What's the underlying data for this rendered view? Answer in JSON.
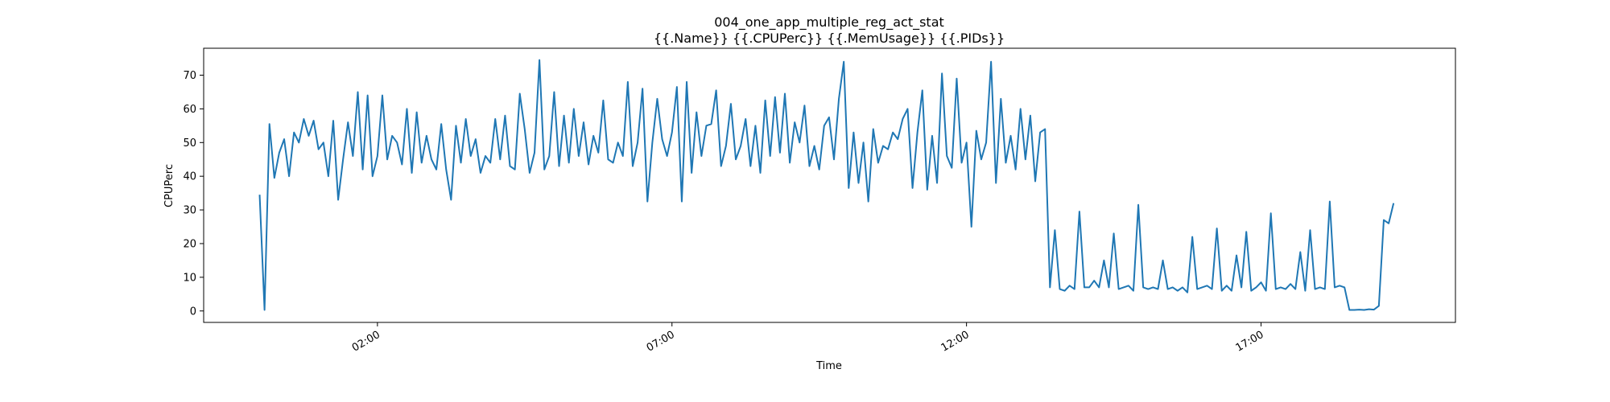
{
  "chart_data": {
    "type": "line",
    "title": "004_one_app_multiple_reg_act_stat",
    "subtitle": "{{.Name}} {{.CPUPerc}} {{.MemUsage}}  {{.PIDs}}",
    "x_label": "Time",
    "y_label": "CPUPerc",
    "x": [
      "00:00",
      "00:05",
      "00:10",
      "00:15",
      "00:20",
      "00:25",
      "00:30",
      "00:35",
      "00:40",
      "00:45",
      "00:50",
      "00:55",
      "01:00",
      "01:05",
      "01:10",
      "01:15",
      "01:20",
      "01:25",
      "01:30",
      "01:35",
      "01:40",
      "01:45",
      "01:50",
      "01:55",
      "02:00",
      "02:05",
      "02:10",
      "02:15",
      "02:20",
      "02:25",
      "02:30",
      "02:35",
      "02:40",
      "02:45",
      "02:50",
      "02:55",
      "03:00",
      "03:05",
      "03:10",
      "03:15",
      "03:20",
      "03:25",
      "03:30",
      "03:35",
      "03:40",
      "03:45",
      "03:50",
      "03:55",
      "04:00",
      "04:05",
      "04:10",
      "04:15",
      "04:20",
      "04:25",
      "04:30",
      "04:35",
      "04:40",
      "04:45",
      "04:50",
      "04:55",
      "05:00",
      "05:05",
      "05:10",
      "05:15",
      "05:20",
      "05:25",
      "05:30",
      "05:35",
      "05:40",
      "05:45",
      "05:50",
      "05:55",
      "06:00",
      "06:05",
      "06:10",
      "06:15",
      "06:20",
      "06:25",
      "06:30",
      "06:35",
      "06:40",
      "06:45",
      "06:50",
      "06:55",
      "07:00",
      "07:05",
      "07:10",
      "07:15",
      "07:20",
      "07:25",
      "07:30",
      "07:35",
      "07:40",
      "07:45",
      "07:50",
      "07:55",
      "08:00",
      "08:05",
      "08:10",
      "08:15",
      "08:20",
      "08:25",
      "08:30",
      "08:35",
      "08:40",
      "08:45",
      "08:50",
      "08:55",
      "09:00",
      "09:05",
      "09:10",
      "09:15",
      "09:20",
      "09:25",
      "09:30",
      "09:35",
      "09:40",
      "09:45",
      "09:50",
      "09:55",
      "10:00",
      "10:05",
      "10:10",
      "10:15",
      "10:20",
      "10:25",
      "10:30",
      "10:35",
      "10:40",
      "10:45",
      "10:50",
      "10:55",
      "11:00",
      "11:05",
      "11:10",
      "11:15",
      "11:20",
      "11:25",
      "11:30",
      "11:35",
      "11:40",
      "11:45",
      "11:50",
      "11:55",
      "12:00",
      "12:05",
      "12:10",
      "12:15",
      "12:20",
      "12:25",
      "12:30",
      "12:35",
      "12:40",
      "12:45",
      "12:50",
      "12:55",
      "13:00",
      "13:05",
      "13:10",
      "13:15",
      "13:20",
      "13:25",
      "13:30",
      "13:35",
      "13:40",
      "13:45",
      "13:50",
      "13:55",
      "14:00",
      "14:05",
      "14:10",
      "14:15",
      "14:20",
      "14:25",
      "14:30",
      "14:35",
      "14:40",
      "14:45",
      "14:50",
      "14:55",
      "15:00",
      "15:05",
      "15:10",
      "15:15",
      "15:20",
      "15:25",
      "15:30",
      "15:35",
      "15:40",
      "15:45",
      "15:50",
      "15:55",
      "16:00",
      "16:05",
      "16:10",
      "16:15",
      "16:20",
      "16:25",
      "16:30",
      "16:35",
      "16:40",
      "16:45",
      "16:50",
      "16:55",
      "17:00",
      "17:05",
      "17:10",
      "17:15",
      "17:20",
      "17:25",
      "17:30",
      "17:35",
      "17:40",
      "17:45",
      "17:50",
      "17:55",
      "18:00",
      "18:05",
      "18:10",
      "18:15",
      "18:20",
      "18:25",
      "18:30",
      "18:35",
      "18:40",
      "18:45",
      "18:50",
      "18:55",
      "19:00",
      "19:05",
      "19:10",
      "19:15"
    ],
    "series": [
      {
        "color": "#1f77b4",
        "values": [
          34.5,
          0.3,
          55.5,
          39.5,
          47,
          51,
          40,
          53,
          50,
          57,
          52,
          56.5,
          48,
          50,
          40,
          56.5,
          33,
          45,
          56,
          46,
          65,
          42,
          64,
          40,
          46,
          64,
          45,
          52,
          50,
          43.5,
          60,
          41,
          59,
          44,
          52,
          45,
          42,
          55.5,
          42,
          33,
          55,
          44,
          57,
          46,
          51,
          41,
          46,
          44,
          57,
          45,
          58,
          43,
          42,
          64.5,
          54,
          41,
          47,
          74.5,
          42,
          46,
          65,
          43,
          58,
          44,
          60,
          46,
          56,
          43.5,
          52,
          47,
          62.5,
          45,
          44,
          50,
          46,
          68,
          43,
          50,
          66,
          32.5,
          50,
          63,
          51,
          46,
          53,
          66.5,
          32.5,
          68,
          41,
          59,
          46,
          55,
          55.5,
          65.5,
          43,
          49,
          61.5,
          45,
          49,
          57,
          43,
          55,
          41,
          62.5,
          46,
          63.5,
          47,
          64.5,
          44,
          56,
          50,
          61,
          43,
          49,
          42,
          55,
          57.5,
          45,
          63,
          74,
          36.5,
          53,
          38,
          50,
          32.5,
          54,
          44,
          49,
          48,
          53,
          51,
          57,
          60,
          36.5,
          53,
          65.5,
          36,
          52,
          38,
          70.5,
          46,
          42.5,
          69,
          44,
          50,
          25,
          53.5,
          45,
          50,
          74,
          38,
          63,
          44,
          52,
          42,
          60,
          45,
          58,
          38.5,
          53,
          54,
          7,
          24,
          6.5,
          6,
          7.5,
          6.5,
          29.5,
          7,
          7,
          9,
          7,
          15,
          7,
          23,
          6.5,
          7,
          7.5,
          6,
          31.5,
          7,
          6.5,
          7,
          6.5,
          15,
          6.5,
          7,
          6,
          7,
          5.5,
          22,
          6.5,
          7,
          7.5,
          6.5,
          24.5,
          6,
          7.5,
          6,
          16.5,
          7,
          23.5,
          6,
          7,
          8.5,
          6,
          29,
          6.5,
          7,
          6.5,
          8,
          6.5,
          17.5,
          6,
          24,
          6.5,
          7,
          6.5,
          32.5,
          7,
          7.5,
          7,
          0.3,
          0.3,
          0.4,
          0.3,
          0.5,
          0.4,
          1.5,
          27,
          26,
          32
        ]
      }
    ],
    "xlim": [
      -57,
      1218
    ],
    "xticks": [
      {
        "value": 120,
        "label": "02:00"
      },
      {
        "value": 420,
        "label": "07:00"
      },
      {
        "value": 720,
        "label": "12:00"
      },
      {
        "value": 1020,
        "label": "17:00"
      }
    ],
    "ylim": [
      -3.4,
      78
    ],
    "yticks": [
      0,
      10,
      20,
      30,
      40,
      50,
      60,
      70
    ]
  }
}
